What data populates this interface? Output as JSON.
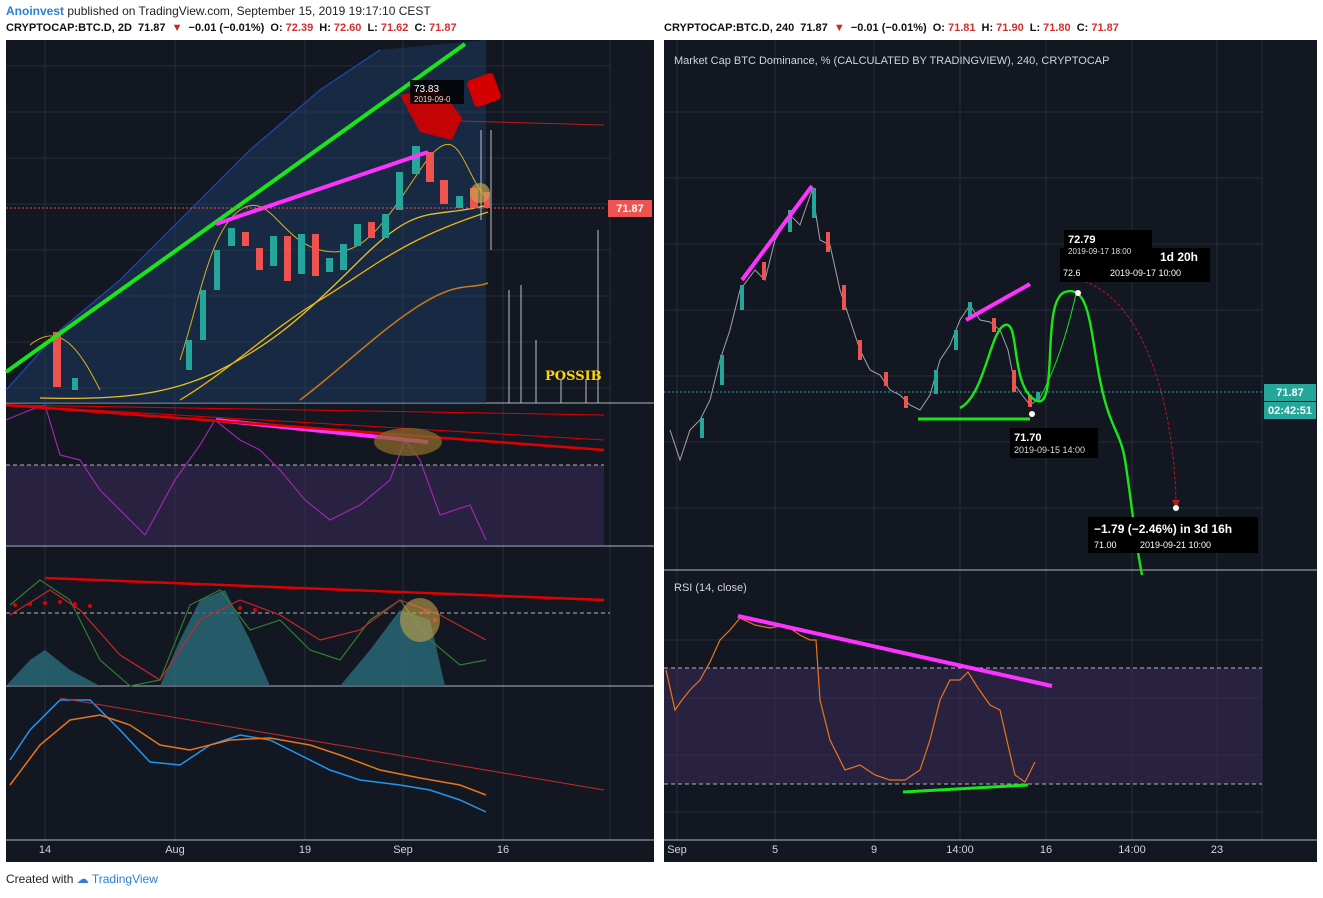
{
  "header": {
    "author": "Anoinvest",
    "published": "published on TradingView.com, September 15, 2019 19:17:10 CEST"
  },
  "left_chart": {
    "symbol": "CRYPTOCAP:BTC.D, 2D",
    "last": "71.87",
    "change": "−0.01 (−0.01%)",
    "open_label": "O:",
    "open": "72.39",
    "high_label": "H:",
    "high": "72.60",
    "low_label": "L:",
    "low": "71.62",
    "close_label": "C:",
    "close": "71.87",
    "price_badge": "71.87",
    "annotation_price": "73.83",
    "annotation_date": "2019-09-0",
    "text_note": "POSSIB",
    "x_ticks": [
      "14",
      "Aug",
      "19",
      "Sep",
      "16"
    ]
  },
  "right_chart": {
    "symbol": "CRYPTOCAP:BTC.D, 240",
    "last": "71.87",
    "change": "−0.01 (−0.01%)",
    "open_label": "O:",
    "open": "71.81",
    "high_label": "H:",
    "high": "71.90",
    "low_label": "L:",
    "low": "71.80",
    "close_label": "C:",
    "close": "71.87",
    "series_title": "Market Cap BTC Dominance, % (CALCULATED BY TRADINGVIEW), 240, CRYPTOCAP",
    "price_badge": "71.87",
    "countdown": "02:42:51",
    "low_point_price": "71.70",
    "low_point_date": "2019-09-15 14:00",
    "peak_price": "72.79",
    "peak_date": "2019-09-17 18:00",
    "projection_top_a": "1d 20h",
    "projection_top_b_price": "72.6",
    "projection_top_b_date": "2019-09-17  10:00",
    "projection_bottom_change": "−1.79 (−2.46%) in 3d 16h",
    "projection_bottom_price": "71.00",
    "projection_bottom_date": "2019-09-21  10:00",
    "rsi_label": "RSI (14, close)",
    "x_ticks": [
      "Sep",
      "5",
      "9",
      "14:00",
      "16",
      "14:00",
      "23"
    ]
  },
  "footer": {
    "created_with": "Created with",
    "brand": "TradingView"
  },
  "colors": {
    "candle_up": "#26a69a",
    "candle_down": "#ef5350",
    "trend_green": "#19e619",
    "trend_magenta": "#ff33ff",
    "trend_red": "#e00000",
    "panel_dark": "#131722",
    "rsi_line_purple": "#9c27b0",
    "rsi_line_orange": "#e8751a",
    "badge_red": "#ef5350",
    "badge_teal": "#26a69a"
  },
  "chart_data": [
    {
      "type": "line",
      "title": "CRYPTOCAP:BTC.D, 2D",
      "x": [
        "14",
        "Aug",
        "19",
        "Sep",
        "16"
      ],
      "series": [],
      "ylabel": "",
      "annotations": [
        "73.83",
        "POSSIB",
        "71.87"
      ]
    },
    {
      "type": "line",
      "title": "Market Cap BTC Dominance, % (CALCULATED BY TRADINGVIEW), 240, CRYPTOCAP",
      "x": [
        "Sep",
        "5",
        "9",
        "14:00",
        "16",
        "14:00",
        "23"
      ],
      "series": [],
      "annotations": [
        "71.70",
        "72.79",
        "71.00",
        "71.87"
      ]
    }
  ]
}
